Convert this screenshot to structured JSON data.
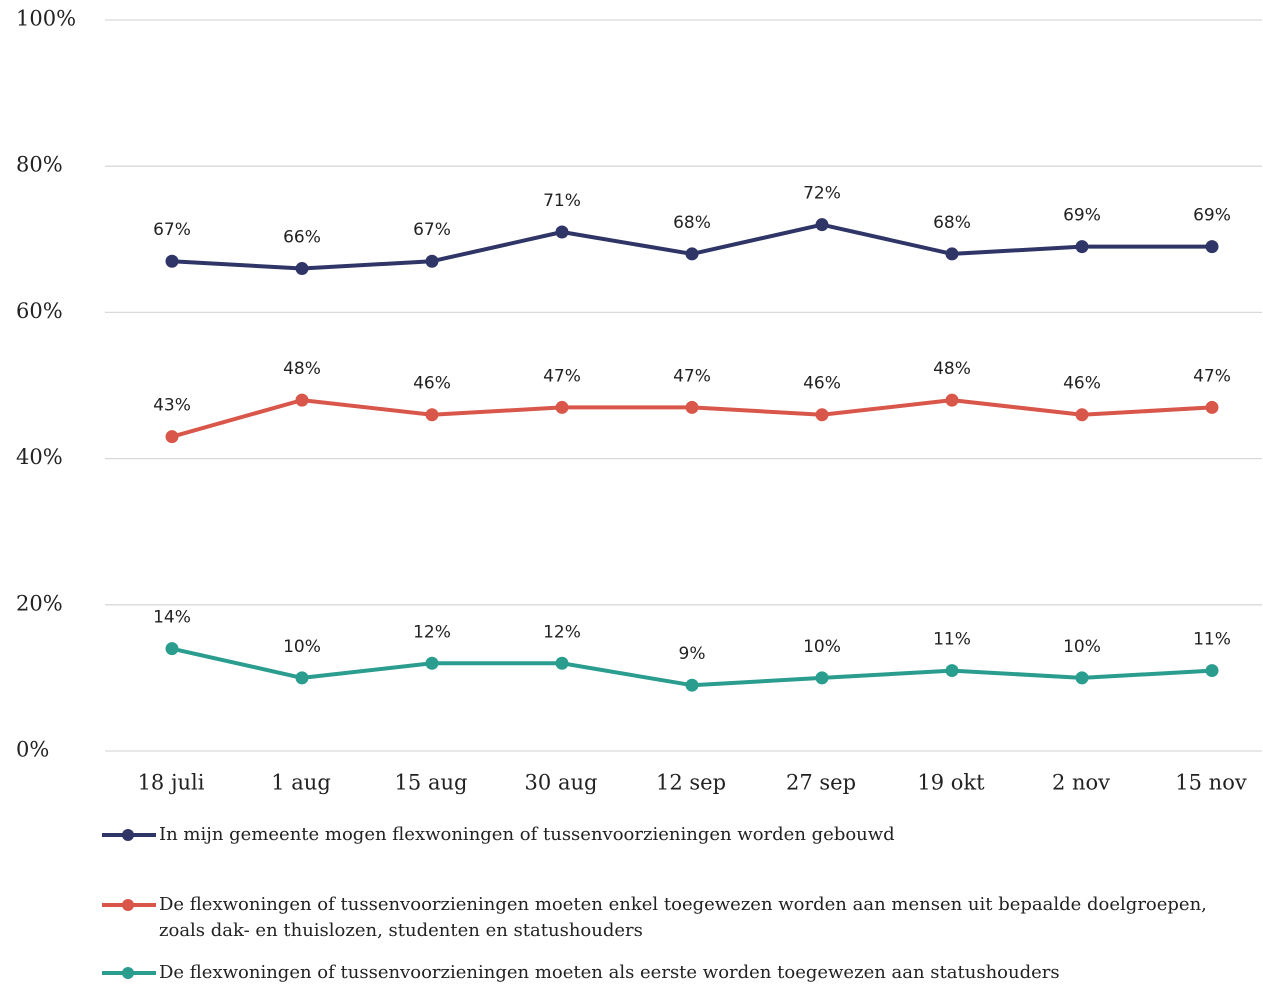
{
  "chart_data": {
    "type": "line",
    "categories": [
      "18 juli",
      "1 aug",
      "15 aug",
      "30 aug",
      "12 sep",
      "27 sep",
      "19 okt",
      "2 nov",
      "15 nov"
    ],
    "series": [
      {
        "name": "In mijn gemeente mogen flexwoningen of tussenvoorzieningen worden gebouwd",
        "color": "#2f3566",
        "values": [
          67,
          66,
          67,
          71,
          68,
          72,
          68,
          69,
          69
        ],
        "value_labels": [
          "67%",
          "66%",
          "67%",
          "71%",
          "68%",
          "72%",
          "68%",
          "69%",
          "69%"
        ]
      },
      {
        "name": "De flexwoningen of tussenvoorzieningen moeten enkel toegewezen worden aan mensen uit bepaalde doelgroepen, zoals dak- en thuislozen, studenten en statushouders",
        "color": "#d9574a",
        "values": [
          43,
          48,
          46,
          47,
          47,
          46,
          48,
          46,
          47
        ],
        "value_labels": [
          "43%",
          "48%",
          "46%",
          "47%",
          "47%",
          "46%",
          "48%",
          "46%",
          "47%"
        ]
      },
      {
        "name": "De flexwoningen of tussenvoorzieningen moeten als eerste worden toegewezen aan statushouders",
        "color": "#2a9d8f",
        "values": [
          14,
          10,
          12,
          12,
          9,
          10,
          11,
          10,
          11
        ],
        "value_labels": [
          "14%",
          "10%",
          "12%",
          "12%",
          "9%",
          "10%",
          "11%",
          "10%",
          "11%"
        ]
      }
    ],
    "ylim": [
      0,
      100
    ],
    "yticks": [
      {
        "value": 0,
        "label": "0%"
      },
      {
        "value": 20,
        "label": "20%"
      },
      {
        "value": 40,
        "label": "40%"
      },
      {
        "value": 60,
        "label": "60%"
      },
      {
        "value": 80,
        "label": "80%"
      },
      {
        "value": 100,
        "label": "100%"
      }
    ],
    "grid": true
  }
}
